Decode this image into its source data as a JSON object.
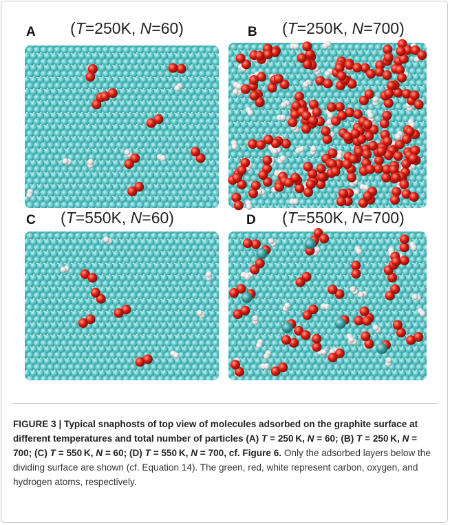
{
  "panels": [
    {
      "letter": "A",
      "title": [
        "(",
        "T",
        "=250K, ",
        "N",
        "=60)"
      ]
    },
    {
      "letter": "B",
      "title": [
        "(",
        "T",
        "=250K, ",
        "N",
        "=700)"
      ]
    },
    {
      "letter": "C",
      "title": [
        "(",
        "T",
        "=550K, ",
        "N",
        "=60)"
      ]
    },
    {
      "letter": "D",
      "title": [
        "(",
        "T",
        "=550K, ",
        "N",
        "=700)"
      ]
    }
  ],
  "caption": {
    "bold": [
      "FIGURE 3 | Typical snaphosts of top view of molecules adsorbed on the graphite surface at different temperatures and total number of particles (A) ",
      "T",
      " = 250 K, ",
      "N",
      " = 60; (B) ",
      "T",
      " = 250 K, ",
      "N",
      " = 700; (C) ",
      "T",
      " = 550 K, ",
      "N",
      " = 60; (D) ",
      "T",
      " = 550 K, ",
      "N",
      " = 700, cf. Figure 6."
    ],
    "text": " Only the adsorbed layers below the dividing surface are shown (cf. Equation 14). The green, red, white represent carbon, oxygen, and hydrogen atoms, respectively."
  }
}
